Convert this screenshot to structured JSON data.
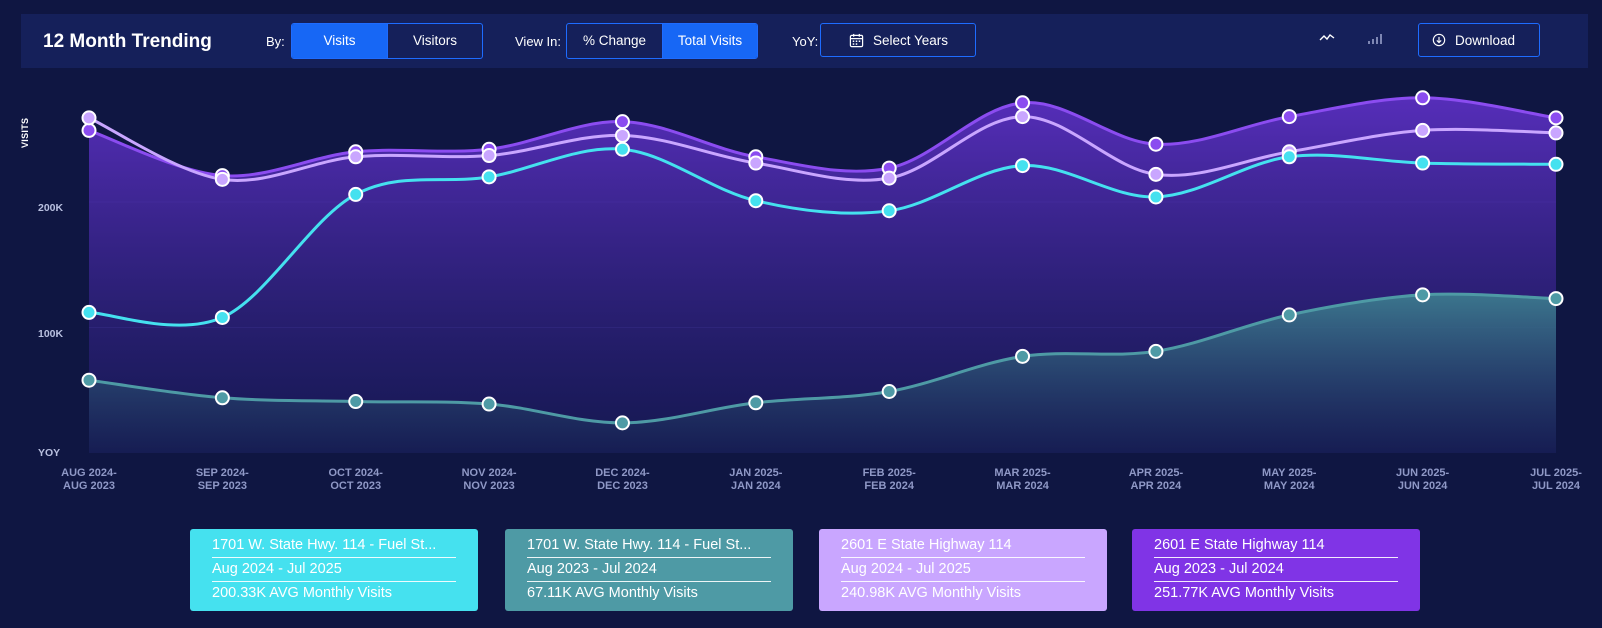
{
  "header": {
    "title": "12 Month Trending",
    "by_label": "By:",
    "by_options": [
      "Visits",
      "Visitors"
    ],
    "by_selected": "Visits",
    "view_label": "View In:",
    "view_options": [
      "% Change",
      "Total Visits"
    ],
    "view_selected": "Total Visits",
    "yoy_label": "YoY:",
    "yoy_button": "Select Years",
    "download_label": "Download",
    "line_view_icon": "line-chart-icon",
    "bar_view_icon": "bar-chart-icon"
  },
  "chart_data": {
    "type": "area",
    "ylabel": "VISITS",
    "yticks": [
      "200K",
      "100K",
      "YOY"
    ],
    "categories": [
      [
        "AUG 2024-",
        "AUG 2023"
      ],
      [
        "SEP 2024-",
        "SEP 2023"
      ],
      [
        "OCT 2024-",
        "OCT 2023"
      ],
      [
        "NOV 2024-",
        "NOV 2023"
      ],
      [
        "DEC 2024-",
        "DEC 2023"
      ],
      [
        "JAN 2025-",
        "JAN 2024"
      ],
      [
        "FEB 2025-",
        "FEB 2024"
      ],
      [
        "MAR 2025-",
        "MAR 2024"
      ],
      [
        "APR 2025-",
        "APR 2024"
      ],
      [
        "MAY 2025-",
        "MAY 2024"
      ],
      [
        "JUN 2025-",
        "JUN 2024"
      ],
      [
        "JUL 2025-",
        "JUL 2024"
      ]
    ],
    "ylim": [
      0,
      290000
    ],
    "grid": true,
    "series": [
      {
        "name": "2601 E State Highway 114 (Aug 2023 - Jul 2024)",
        "color": "#8b4cf0",
        "values": [
          257000,
          221000,
          240000,
          242000,
          264000,
          236000,
          227000,
          279000,
          246000,
          268000,
          283000,
          267000
        ]
      },
      {
        "name": "2601 E State Highway 114 (Aug 2024 - Jul 2025)",
        "color": "#c9a6ff",
        "values": [
          267000,
          218000,
          236000,
          237000,
          253000,
          231000,
          219000,
          268000,
          222000,
          240000,
          257000,
          255000
        ]
      },
      {
        "name": "1701 W. State Hwy. 114 - Fuel St... (Aug 2024 - Jul 2025)",
        "color": "#45e1ef",
        "values": [
          112000,
          108000,
          206000,
          220000,
          242000,
          201000,
          193000,
          229000,
          204000,
          236000,
          231000,
          230000
        ]
      },
      {
        "name": "1701 W. State Hwy. 114 - Fuel St... (Aug 2023 - Jul 2024)",
        "color": "#4e9aa5",
        "values": [
          58000,
          44000,
          41000,
          39000,
          24000,
          40000,
          49000,
          77000,
          81000,
          110000,
          126000,
          123000
        ]
      }
    ]
  },
  "legend": [
    {
      "line1": "1701 W. State Hwy. 114 - Fuel St...",
      "line2": "Aug 2024 - Jul 2025",
      "line3": "200.33K AVG Monthly Visits",
      "color": "#45e1ef"
    },
    {
      "line1": "1701 W. State Hwy. 114 - Fuel St...",
      "line2": "Aug 2023 - Jul 2024",
      "line3": "67.11K AVG Monthly Visits",
      "color": "#4e9aa5"
    },
    {
      "line1": "2601 E State Highway 114",
      "line2": "Aug 2024 - Jul 2025",
      "line3": "240.98K AVG Monthly Visits",
      "color": "#c9a6ff"
    },
    {
      "line1": "2601 E State Highway 114",
      "line2": "Aug 2023 - Jul 2024",
      "line3": "251.77K AVG Monthly Visits",
      "color": "#8034e6"
    }
  ]
}
